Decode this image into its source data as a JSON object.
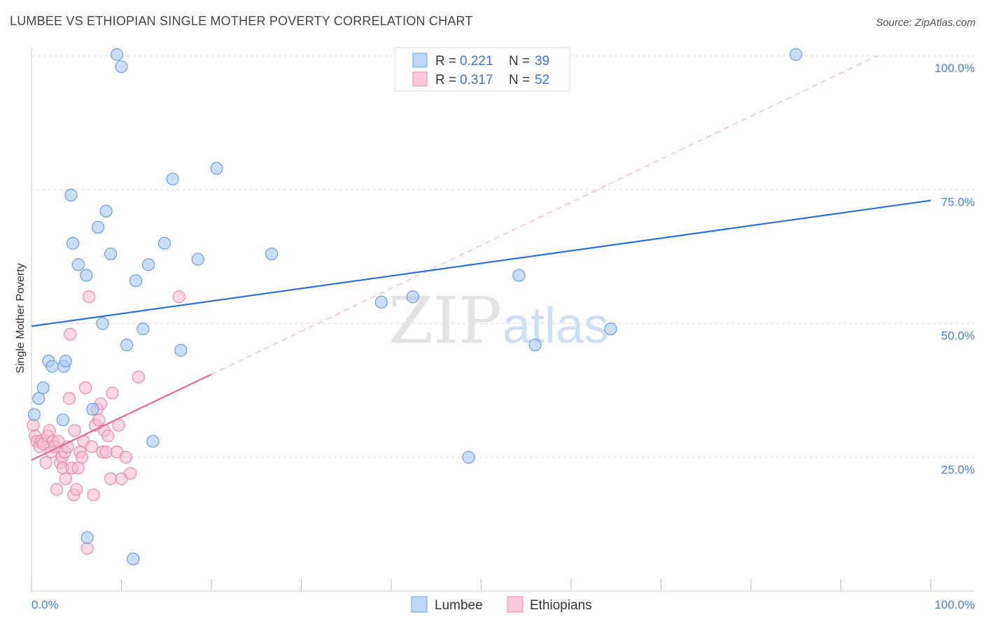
{
  "title": "LUMBEE VS ETHIOPIAN SINGLE MOTHER POVERTY CORRELATION CHART",
  "source": "Source: ZipAtlas.com",
  "colors": {
    "lumbee_fill": "#a9c8f0",
    "lumbee_stroke": "#6d9ee0",
    "lumbee_line": "#2e6fd0",
    "ethiopian_fill": "#f7b9cc",
    "ethiopian_stroke": "#ea8aa8",
    "ethiopian_line": "#e4689a",
    "grid": "#d9d9d9",
    "axis_text": "#4a7fd4"
  },
  "legend": {
    "lumbee": {
      "r_label": "R =",
      "r_value": "0.221",
      "n_label": "N =",
      "n_value": "39"
    },
    "ethiopian": {
      "r_label": "R =",
      "r_value": "0.317",
      "n_label": "N =",
      "n_value": "52"
    }
  },
  "bottom_legend": [
    "Lumbee",
    "Ethiopians"
  ],
  "watermark": {
    "zip": "ZIP",
    "atlas": "atlas"
  },
  "chart_data": {
    "type": "scatter",
    "xlabel": "",
    "ylabel": "Single Mother Poverty",
    "xlim": [
      0,
      100
    ],
    "ylim": [
      0,
      100
    ],
    "x_tick_labels": [
      "0.0%",
      "100.0%"
    ],
    "y_tick_labels": [
      {
        "value": 25,
        "label": "25.0%"
      },
      {
        "value": 50,
        "label": "50.0%"
      },
      {
        "value": 75,
        "label": "75.0%"
      },
      {
        "value": 100,
        "label": "100.0%"
      }
    ],
    "series": [
      {
        "name": "Lumbee",
        "points": [
          [
            0.3,
            33
          ],
          [
            0.8,
            36
          ],
          [
            1.3,
            38
          ],
          [
            1.9,
            43
          ],
          [
            2.3,
            42
          ],
          [
            3.5,
            32
          ],
          [
            3.6,
            42
          ],
          [
            3.8,
            43
          ],
          [
            4.4,
            74
          ],
          [
            4.6,
            65
          ],
          [
            5.2,
            61
          ],
          [
            6.1,
            59
          ],
          [
            6.2,
            10
          ],
          [
            6.8,
            34
          ],
          [
            7.4,
            68
          ],
          [
            7.9,
            50
          ],
          [
            8.3,
            71
          ],
          [
            8.8,
            63
          ],
          [
            9.5,
            102
          ],
          [
            10.0,
            98
          ],
          [
            10.6,
            46
          ],
          [
            11.3,
            6
          ],
          [
            11.6,
            58
          ],
          [
            12.4,
            49
          ],
          [
            13.0,
            61
          ],
          [
            13.5,
            28
          ],
          [
            14.8,
            65
          ],
          [
            15.7,
            77
          ],
          [
            16.6,
            45
          ],
          [
            18.5,
            62
          ],
          [
            20.6,
            79
          ],
          [
            26.7,
            63
          ],
          [
            38.9,
            54
          ],
          [
            42.4,
            55
          ],
          [
            48.6,
            25
          ],
          [
            54.2,
            59
          ],
          [
            56.0,
            46
          ],
          [
            64.4,
            49
          ],
          [
            85.0,
            102
          ]
        ],
        "trend": {
          "x": [
            0,
            100
          ],
          "y": [
            49.5,
            73
          ]
        }
      },
      {
        "name": "Ethiopians",
        "points": [
          [
            0.2,
            31
          ],
          [
            0.4,
            29
          ],
          [
            0.6,
            28
          ],
          [
            0.9,
            27
          ],
          [
            1.1,
            28
          ],
          [
            1.3,
            27.5
          ],
          [
            1.6,
            24
          ],
          [
            1.8,
            29
          ],
          [
            2.0,
            30
          ],
          [
            2.2,
            26
          ],
          [
            2.4,
            28
          ],
          [
            2.6,
            27
          ],
          [
            2.8,
            19
          ],
          [
            3.0,
            28
          ],
          [
            3.2,
            24
          ],
          [
            3.4,
            25
          ],
          [
            3.5,
            23
          ],
          [
            3.7,
            26
          ],
          [
            3.8,
            21
          ],
          [
            4.0,
            27
          ],
          [
            4.2,
            36
          ],
          [
            4.3,
            48
          ],
          [
            4.5,
            23
          ],
          [
            4.7,
            18
          ],
          [
            4.8,
            30
          ],
          [
            5.0,
            19
          ],
          [
            5.2,
            23
          ],
          [
            5.4,
            26
          ],
          [
            5.6,
            25
          ],
          [
            5.8,
            28
          ],
          [
            6.0,
            38
          ],
          [
            6.2,
            8
          ],
          [
            6.4,
            55
          ],
          [
            6.7,
            27
          ],
          [
            6.9,
            18
          ],
          [
            7.1,
            31
          ],
          [
            7.3,
            34
          ],
          [
            7.5,
            32
          ],
          [
            7.7,
            35
          ],
          [
            7.9,
            26
          ],
          [
            8.1,
            30
          ],
          [
            8.3,
            26
          ],
          [
            8.5,
            29
          ],
          [
            8.8,
            21
          ],
          [
            9.0,
            37
          ],
          [
            9.5,
            26
          ],
          [
            9.7,
            31
          ],
          [
            10.0,
            21
          ],
          [
            10.5,
            25
          ],
          [
            11.0,
            22
          ],
          [
            11.9,
            40
          ],
          [
            16.4,
            55
          ]
        ],
        "trend": {
          "x": [
            0,
            20
          ],
          "y": [
            24.5,
            40.5
          ]
        },
        "trend_extended": {
          "x": [
            20,
            94
          ],
          "y": [
            40.5,
            100
          ]
        }
      }
    ]
  }
}
